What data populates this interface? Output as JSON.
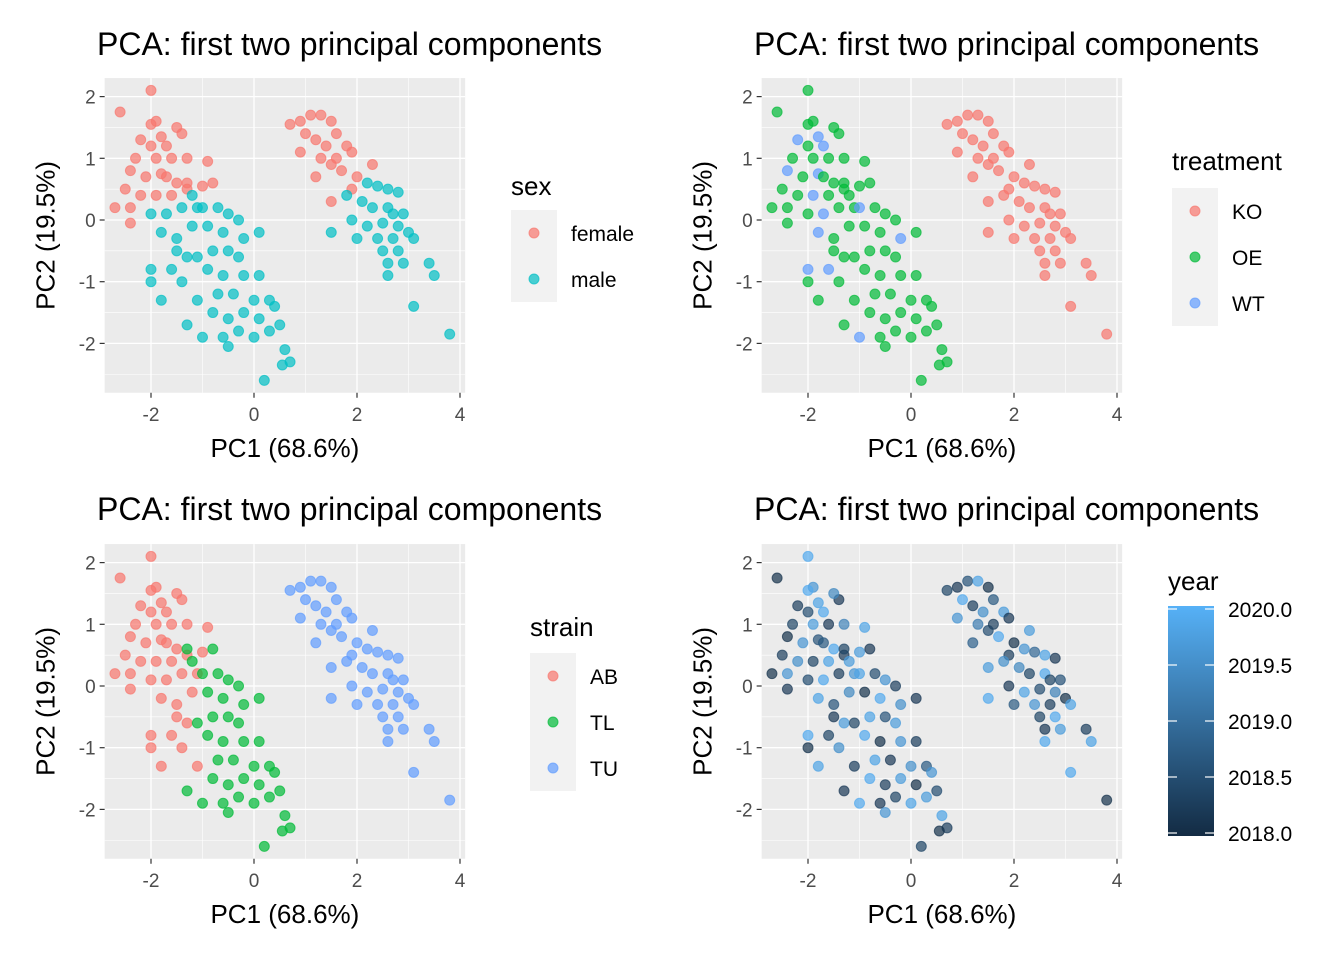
{
  "chart_data": {
    "type": "scatter",
    "title": "PCA: first two principal components",
    "xlabel": "PC1 (68.6%)",
    "ylabel": "PC2 (19.5%)",
    "xlim": [
      -2.9,
      4.1
    ],
    "ylim": [
      -2.8,
      2.3
    ],
    "xticks": [
      "-2",
      "0",
      "2",
      "4"
    ],
    "yticks": [
      "2",
      "1",
      "0",
      "-1",
      "-2"
    ],
    "xtick_values": [
      -2,
      0,
      2,
      4
    ],
    "ytick_values": [
      2,
      1,
      0,
      -1,
      -2
    ],
    "columns": [
      "pc1",
      "pc2",
      "sex",
      "treatment",
      "strain",
      "year"
    ],
    "points": [
      [
        0.9,
        1.6,
        "female",
        "KO",
        "TU",
        2018.2
      ],
      [
        1.1,
        1.7,
        "female",
        "KO",
        "TU",
        2018.6
      ],
      [
        1.3,
        1.7,
        "female",
        "KO",
        "TU",
        2019.8
      ],
      [
        1.5,
        1.6,
        "female",
        "KO",
        "TU",
        2018.1
      ],
      [
        0.7,
        1.55,
        "female",
        "KO",
        "TU",
        2018.4
      ],
      [
        1.0,
        1.4,
        "female",
        "KO",
        "TU",
        2019.9
      ],
      [
        1.2,
        1.3,
        "female",
        "KO",
        "TU",
        2018.3
      ],
      [
        1.4,
        1.2,
        "female",
        "KO",
        "TU",
        2019.5
      ],
      [
        1.6,
        1.4,
        "female",
        "KO",
        "TU",
        2018.7
      ],
      [
        1.8,
        1.2,
        "female",
        "KO",
        "TU",
        2019.7
      ],
      [
        1.9,
        1.1,
        "female",
        "KO",
        "TU",
        2018.2
      ],
      [
        1.3,
        1.0,
        "female",
        "KO",
        "TU",
        2019.2
      ],
      [
        1.5,
        0.9,
        "female",
        "KO",
        "TU",
        2018.5
      ],
      [
        1.7,
        0.8,
        "female",
        "KO",
        "TU",
        2019.9
      ],
      [
        2.0,
        0.7,
        "female",
        "KO",
        "TU",
        2018.1
      ],
      [
        2.2,
        0.6,
        "male",
        "KO",
        "TU",
        2019.6
      ],
      [
        1.9,
        0.5,
        "female",
        "KO",
        "TU",
        2018.3
      ],
      [
        2.4,
        0.55,
        "male",
        "KO",
        "TU",
        2018.9
      ],
      [
        2.6,
        0.5,
        "male",
        "KO",
        "TU",
        2019.8
      ],
      [
        2.8,
        0.45,
        "male",
        "KO",
        "TU",
        2018.2
      ],
      [
        2.1,
        0.3,
        "male",
        "KO",
        "TU",
        2019.4
      ],
      [
        2.3,
        0.2,
        "male",
        "KO",
        "TU",
        2018.4
      ],
      [
        2.6,
        0.2,
        "male",
        "KO",
        "TU",
        2019.9
      ],
      [
        2.9,
        0.1,
        "male",
        "KO",
        "TU",
        2018.6
      ],
      [
        1.5,
        0.3,
        "female",
        "KO",
        "TU",
        2019.7
      ],
      [
        1.9,
        0.0,
        "male",
        "KO",
        "TU",
        2018.2
      ],
      [
        2.2,
        -0.1,
        "male",
        "KO",
        "TU",
        2019.8
      ],
      [
        2.5,
        -0.05,
        "male",
        "KO",
        "TU",
        2018.5
      ],
      [
        2.8,
        -0.1,
        "male",
        "KO",
        "TU",
        2019.3
      ],
      [
        3.0,
        -0.2,
        "male",
        "KO",
        "TU",
        2018.1
      ],
      [
        1.5,
        -0.2,
        "male",
        "KO",
        "TU",
        2019.9
      ],
      [
        2.0,
        -0.3,
        "male",
        "KO",
        "TU",
        2018.7
      ],
      [
        2.4,
        -0.3,
        "male",
        "KO",
        "TU",
        2019.6
      ],
      [
        2.7,
        -0.3,
        "male",
        "KO",
        "TU",
        2018.3
      ],
      [
        3.1,
        -0.3,
        "male",
        "KO",
        "TU",
        2019.8
      ],
      [
        2.5,
        -0.5,
        "male",
        "KO",
        "TU",
        2018.4
      ],
      [
        2.8,
        -0.5,
        "male",
        "KO",
        "TU",
        2019.9
      ],
      [
        2.6,
        -0.7,
        "male",
        "KO",
        "TU",
        2018.2
      ],
      [
        2.9,
        -0.7,
        "male",
        "KO",
        "TU",
        2019.7
      ],
      [
        2.6,
        -0.9,
        "male",
        "KO",
        "TU",
        2019.9
      ],
      [
        3.4,
        -0.7,
        "male",
        "KO",
        "TU",
        2018.3
      ],
      [
        3.5,
        -0.9,
        "male",
        "KO",
        "TU",
        2019.8
      ],
      [
        3.1,
        -1.4,
        "male",
        "KO",
        "TU",
        2019.9
      ],
      [
        3.8,
        -1.85,
        "male",
        "KO",
        "TU",
        2018.1
      ],
      [
        0.9,
        1.1,
        "female",
        "KO",
        "TU",
        2019.6
      ],
      [
        1.6,
        1.0,
        "female",
        "KO",
        "TU",
        2018.3
      ],
      [
        2.3,
        0.9,
        "female",
        "KO",
        "TU",
        2019.7
      ],
      [
        1.2,
        0.7,
        "female",
        "KO",
        "TU",
        2018.8
      ],
      [
        1.8,
        0.4,
        "male",
        "KO",
        "TU",
        2019.5
      ],
      [
        2.7,
        0.1,
        "male",
        "KO",
        "TU",
        2018.4
      ],
      [
        -2.0,
        2.1,
        "female",
        "OE",
        "AB",
        2019.9
      ],
      [
        -2.6,
        1.75,
        "female",
        "OE",
        "AB",
        2018.1
      ],
      [
        -1.9,
        1.6,
        "female",
        "OE",
        "AB",
        2019.6
      ],
      [
        -2.2,
        1.3,
        "female",
        "WT",
        "AB",
        2018.3
      ],
      [
        -1.8,
        1.35,
        "female",
        "WT",
        "AB",
        2019.8
      ],
      [
        -1.4,
        1.4,
        "female",
        "OE",
        "AB",
        2018.2
      ],
      [
        -1.5,
        1.5,
        "female",
        "OE",
        "AB",
        2019.4
      ],
      [
        -2.0,
        1.2,
        "female",
        "OE",
        "AB",
        2018.5
      ],
      [
        -1.7,
        1.2,
        "female",
        "WT",
        "AB",
        2019.9
      ],
      [
        -2.3,
        1.0,
        "female",
        "OE",
        "AB",
        2018.4
      ],
      [
        -1.9,
        1.0,
        "female",
        "OE",
        "AB",
        2019.7
      ],
      [
        -1.6,
        1.0,
        "female",
        "OE",
        "AB",
        2018.2
      ],
      [
        -1.3,
        1.0,
        "female",
        "OE",
        "AB",
        2019.3
      ],
      [
        -0.9,
        0.95,
        "female",
        "OE",
        "AB",
        2019.8
      ],
      [
        -2.4,
        0.8,
        "female",
        "WT",
        "AB",
        2018.1
      ],
      [
        -2.1,
        0.7,
        "female",
        "OE",
        "AB",
        2019.6
      ],
      [
        -1.8,
        0.75,
        "female",
        "WT",
        "AB",
        2018.6
      ],
      [
        -1.5,
        0.6,
        "female",
        "OE",
        "AB",
        2019.9
      ],
      [
        -2.5,
        0.5,
        "female",
        "OE",
        "AB",
        2018.3
      ],
      [
        -2.2,
        0.4,
        "female",
        "OE",
        "AB",
        2019.5
      ],
      [
        -1.9,
        0.4,
        "female",
        "WT",
        "AB",
        2018.4
      ],
      [
        -1.6,
        0.4,
        "female",
        "OE",
        "AB",
        2019.8
      ],
      [
        -1.3,
        0.5,
        "female",
        "OE",
        "AB",
        2018.2
      ],
      [
        -1.0,
        0.55,
        "female",
        "OE",
        "AB",
        2019.7
      ],
      [
        -2.7,
        0.2,
        "female",
        "OE",
        "AB",
        2018.1
      ],
      [
        -2.4,
        0.2,
        "female",
        "OE",
        "AB",
        2019.6
      ],
      [
        -2.0,
        0.1,
        "male",
        "OE",
        "AB",
        2018.5
      ],
      [
        -1.7,
        0.1,
        "male",
        "WT",
        "AB",
        2019.9
      ],
      [
        -1.4,
        0.2,
        "male",
        "OE",
        "AB",
        2018.3
      ],
      [
        -1.2,
        -0.1,
        "male",
        "OE",
        "AB",
        2019.4
      ],
      [
        -2.4,
        -0.05,
        "female",
        "OE",
        "AB",
        2018.2
      ],
      [
        -1.8,
        -0.2,
        "male",
        "WT",
        "AB",
        2019.8
      ],
      [
        -1.5,
        -0.3,
        "male",
        "OE",
        "AB",
        2018.6
      ],
      [
        -1.3,
        -0.6,
        "male",
        "OE",
        "AB",
        2019.7
      ],
      [
        -1.6,
        -0.8,
        "male",
        "WT",
        "AB",
        2018.4
      ],
      [
        -2.0,
        -0.8,
        "male",
        "WT",
        "AB",
        2019.9
      ],
      [
        -2.0,
        -1.0,
        "male",
        "OE",
        "AB",
        2018.1
      ],
      [
        -1.4,
        -1.0,
        "male",
        "OE",
        "AB",
        2019.5
      ],
      [
        -1.1,
        -1.3,
        "male",
        "OE",
        "AB",
        2018.3
      ],
      [
        -1.8,
        -1.3,
        "male",
        "OE",
        "AB",
        2019.8
      ],
      [
        -1.5,
        -0.5,
        "male",
        "OE",
        "AB",
        2018.2
      ],
      [
        -1.1,
        0.2,
        "male",
        "OE",
        "AB",
        2019.6
      ],
      [
        -1.7,
        0.7,
        "female",
        "OE",
        "AB",
        2018.7
      ],
      [
        -2.0,
        1.55,
        "female",
        "OE",
        "AB",
        2019.9
      ],
      [
        -1.3,
        0.6,
        "female",
        "OE",
        "TL",
        2018.4
      ],
      [
        -1.2,
        0.4,
        "male",
        "OE",
        "TL",
        2019.7
      ],
      [
        -0.8,
        0.6,
        "female",
        "OE",
        "TL",
        2018.2
      ],
      [
        -1.0,
        0.2,
        "male",
        "WT",
        "TL",
        2019.8
      ],
      [
        -0.7,
        0.2,
        "male",
        "OE",
        "TL",
        2018.5
      ],
      [
        -0.5,
        0.1,
        "male",
        "OE",
        "TL",
        2019.6
      ],
      [
        -0.9,
        -0.1,
        "male",
        "OE",
        "TL",
        2018.1
      ],
      [
        -0.6,
        -0.2,
        "male",
        "OE",
        "TL",
        2019.9
      ],
      [
        -0.3,
        0.0,
        "male",
        "OE",
        "TL",
        2018.3
      ],
      [
        -0.2,
        -0.3,
        "male",
        "WT",
        "TL",
        2019.5
      ],
      [
        0.1,
        -0.2,
        "male",
        "OE",
        "TL",
        2018.2
      ],
      [
        -0.8,
        -0.5,
        "male",
        "OE",
        "TL",
        2019.8
      ],
      [
        -0.5,
        -0.5,
        "male",
        "OE",
        "TL",
        2018.6
      ],
      [
        -0.3,
        -0.6,
        "male",
        "OE",
        "TL",
        2019.7
      ],
      [
        -1.1,
        -0.6,
        "male",
        "OE",
        "TL",
        2018.4
      ],
      [
        -0.9,
        -0.8,
        "male",
        "OE",
        "TL",
        2019.9
      ],
      [
        -0.6,
        -0.9,
        "male",
        "OE",
        "TL",
        2018.1
      ],
      [
        -0.2,
        -0.9,
        "male",
        "OE",
        "TL",
        2019.6
      ],
      [
        0.1,
        -0.9,
        "male",
        "OE",
        "TL",
        2018.3
      ],
      [
        -0.7,
        -1.2,
        "male",
        "OE",
        "TL",
        2019.8
      ],
      [
        -0.4,
        -1.2,
        "male",
        "OE",
        "TL",
        2018.2
      ],
      [
        0.0,
        -1.3,
        "male",
        "OE",
        "TL",
        2019.5
      ],
      [
        0.3,
        -1.3,
        "male",
        "OE",
        "TL",
        2018.7
      ],
      [
        -0.8,
        -1.5,
        "male",
        "OE",
        "TL",
        2019.9
      ],
      [
        -0.5,
        -1.6,
        "male",
        "OE",
        "TL",
        2018.3
      ],
      [
        -0.2,
        -1.5,
        "male",
        "OE",
        "TL",
        2019.7
      ],
      [
        0.1,
        -1.6,
        "male",
        "OE",
        "TL",
        2018.1
      ],
      [
        0.4,
        -1.4,
        "male",
        "OE",
        "TL",
        2019.6
      ],
      [
        -0.3,
        -1.8,
        "male",
        "OE",
        "TL",
        2018.4
      ],
      [
        0.0,
        -1.9,
        "male",
        "OE",
        "TL",
        2019.8
      ],
      [
        -0.6,
        -1.9,
        "male",
        "OE",
        "TL",
        2018.2
      ],
      [
        -1.0,
        -1.9,
        "male",
        "WT",
        "TL",
        2019.9
      ],
      [
        0.5,
        -1.7,
        "male",
        "OE",
        "TL",
        2018.5
      ],
      [
        0.6,
        -2.1,
        "male",
        "OE",
        "TL",
        2019.8
      ],
      [
        0.7,
        -2.3,
        "male",
        "OE",
        "TL",
        2018.3
      ],
      [
        0.55,
        -2.35,
        "male",
        "OE",
        "TL",
        2018.1
      ],
      [
        0.2,
        -2.6,
        "male",
        "OE",
        "TL",
        2018.4
      ],
      [
        -0.5,
        -2.05,
        "male",
        "OE",
        "TL",
        2019.6
      ],
      [
        -1.3,
        -1.7,
        "male",
        "OE",
        "TL",
        2018.2
      ],
      [
        0.3,
        -1.8,
        "male",
        "OE",
        "TL",
        2019.7
      ]
    ],
    "panels": [
      {
        "color_by": "sex",
        "legend_title": "sex",
        "legend": [
          {
            "label": "female",
            "color": "#F8766D"
          },
          {
            "label": "male",
            "color": "#00BFC4"
          }
        ]
      },
      {
        "color_by": "treatment",
        "legend_title": "treatment",
        "legend": [
          {
            "label": "KO",
            "color": "#F8766D"
          },
          {
            "label": "OE",
            "color": "#00BA38"
          },
          {
            "label": "WT",
            "color": "#619CFF"
          }
        ]
      },
      {
        "color_by": "strain",
        "legend_title": "strain",
        "legend": [
          {
            "label": "AB",
            "color": "#F8766D"
          },
          {
            "label": "TL",
            "color": "#00BA38"
          },
          {
            "label": "TU",
            "color": "#619CFF"
          }
        ]
      },
      {
        "color_by": "year",
        "legend_title": "year",
        "gradient": {
          "low": "#132B43",
          "high": "#56B1F7",
          "min": 2018.0,
          "max": 2020.0
        },
        "legend_ticks": [
          "2020.0",
          "2019.5",
          "2019.0",
          "2018.5",
          "2018.0"
        ],
        "legend_tick_values": [
          2020.0,
          2019.5,
          2019.0,
          2018.5,
          2018.0
        ]
      }
    ]
  }
}
